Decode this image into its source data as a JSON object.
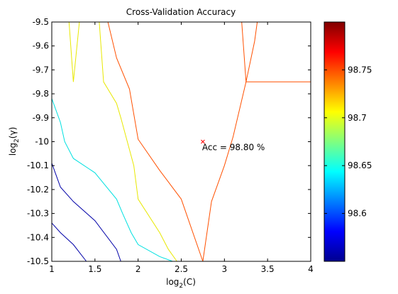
{
  "chart_data": [
    {
      "type": "contour",
      "title": "Cross-Validation Accuracy",
      "xlabel": {
        "base": "log",
        "sub": "2",
        "arg": "(C)"
      },
      "ylabel": {
        "base": "log",
        "sub": "2",
        "arg": "(γ)"
      },
      "xlim": [
        1,
        4
      ],
      "ylim": [
        -10.5,
        -9.5
      ],
      "xticks": [
        1,
        1.5,
        2,
        2.5,
        3,
        3.5,
        4
      ],
      "xtick_labels": [
        "1",
        "1.5",
        "2",
        "2.5",
        "3",
        "3.5",
        "4"
      ],
      "yticks": [
        -9.5,
        -9.6,
        -9.7,
        -9.8,
        -9.9,
        -10,
        -10.1,
        -10.2,
        -10.3,
        -10.4,
        -10.5
      ],
      "ytick_labels": [
        "-9.5",
        "-9.6",
        "-9.7",
        "-9.8",
        "-9.9",
        "-10",
        "-10.1",
        "-10.2",
        "-10.3",
        "-10.4",
        "-10.5"
      ],
      "grid": false,
      "contours": [
        {
          "color": "#0000a8",
          "segments": [
            [
              [
                1,
                -10.09
              ],
              [
                1.1,
                -10.19
              ],
              [
                1.25,
                -10.25
              ],
              [
                1.5,
                -10.33
              ],
              [
                1.75,
                -10.45
              ],
              [
                1.8,
                -10.5
              ]
            ],
            [
              [
                1,
                -10.34
              ],
              [
                1.1,
                -10.38
              ],
              [
                1.25,
                -10.43
              ],
              [
                1.4,
                -10.5
              ]
            ]
          ]
        },
        {
          "color": "#00e0e0",
          "segments": [
            [
              [
                1,
                -9.82
              ],
              [
                1.1,
                -9.92
              ],
              [
                1.15,
                -10.0
              ],
              [
                1.25,
                -10.07
              ],
              [
                1.5,
                -10.13
              ],
              [
                1.75,
                -10.24
              ],
              [
                1.82,
                -10.3
              ],
              [
                1.92,
                -10.38
              ],
              [
                2.0,
                -10.43
              ],
              [
                2.25,
                -10.48
              ],
              [
                2.4,
                -10.5
              ]
            ]
          ]
        },
        {
          "color": "#e8e800",
          "segments": [
            [
              [
                1.2,
                -9.5
              ],
              [
                1.25,
                -9.75
              ],
              [
                1.32,
                -9.5
              ]
            ],
            [
              [
                1.55,
                -9.5
              ],
              [
                1.6,
                -9.75
              ],
              [
                1.75,
                -9.84
              ],
              [
                1.8,
                -9.9
              ],
              [
                1.95,
                -10.1
              ],
              [
                2.0,
                -10.24
              ],
              [
                2.25,
                -10.38
              ],
              [
                2.35,
                -10.45
              ],
              [
                2.45,
                -10.5
              ]
            ]
          ]
        },
        {
          "color": "#ff5000",
          "segments": [
            [
              [
                1.65,
                -9.5
              ],
              [
                1.75,
                -9.65
              ],
              [
                1.9,
                -9.78
              ],
              [
                2.0,
                -9.99
              ],
              [
                2.25,
                -10.12
              ],
              [
                2.5,
                -10.24
              ],
              [
                2.75,
                -10.5
              ],
              [
                2.85,
                -10.25
              ],
              [
                3.0,
                -10.1
              ],
              [
                3.1,
                -9.98
              ],
              [
                3.25,
                -9.75
              ],
              [
                3.35,
                -9.58
              ],
              [
                3.38,
                -9.5
              ]
            ],
            [
              [
                3.2,
                -9.5
              ],
              [
                3.25,
                -9.75
              ],
              [
                4,
                -9.75
              ]
            ]
          ]
        }
      ],
      "marker": {
        "x": 2.75,
        "y": -10.0,
        "symbol": "x",
        "color": "#ff0000"
      },
      "annotation": "Acc = 98.80 %",
      "colorbar": {
        "colormap": "jet",
        "range": [
          98.55,
          98.8
        ],
        "ticks": [
          98.6,
          98.65,
          98.7,
          98.75
        ],
        "tick_labels": [
          "98.6",
          "98.65",
          "98.7",
          "98.75"
        ]
      }
    }
  ]
}
